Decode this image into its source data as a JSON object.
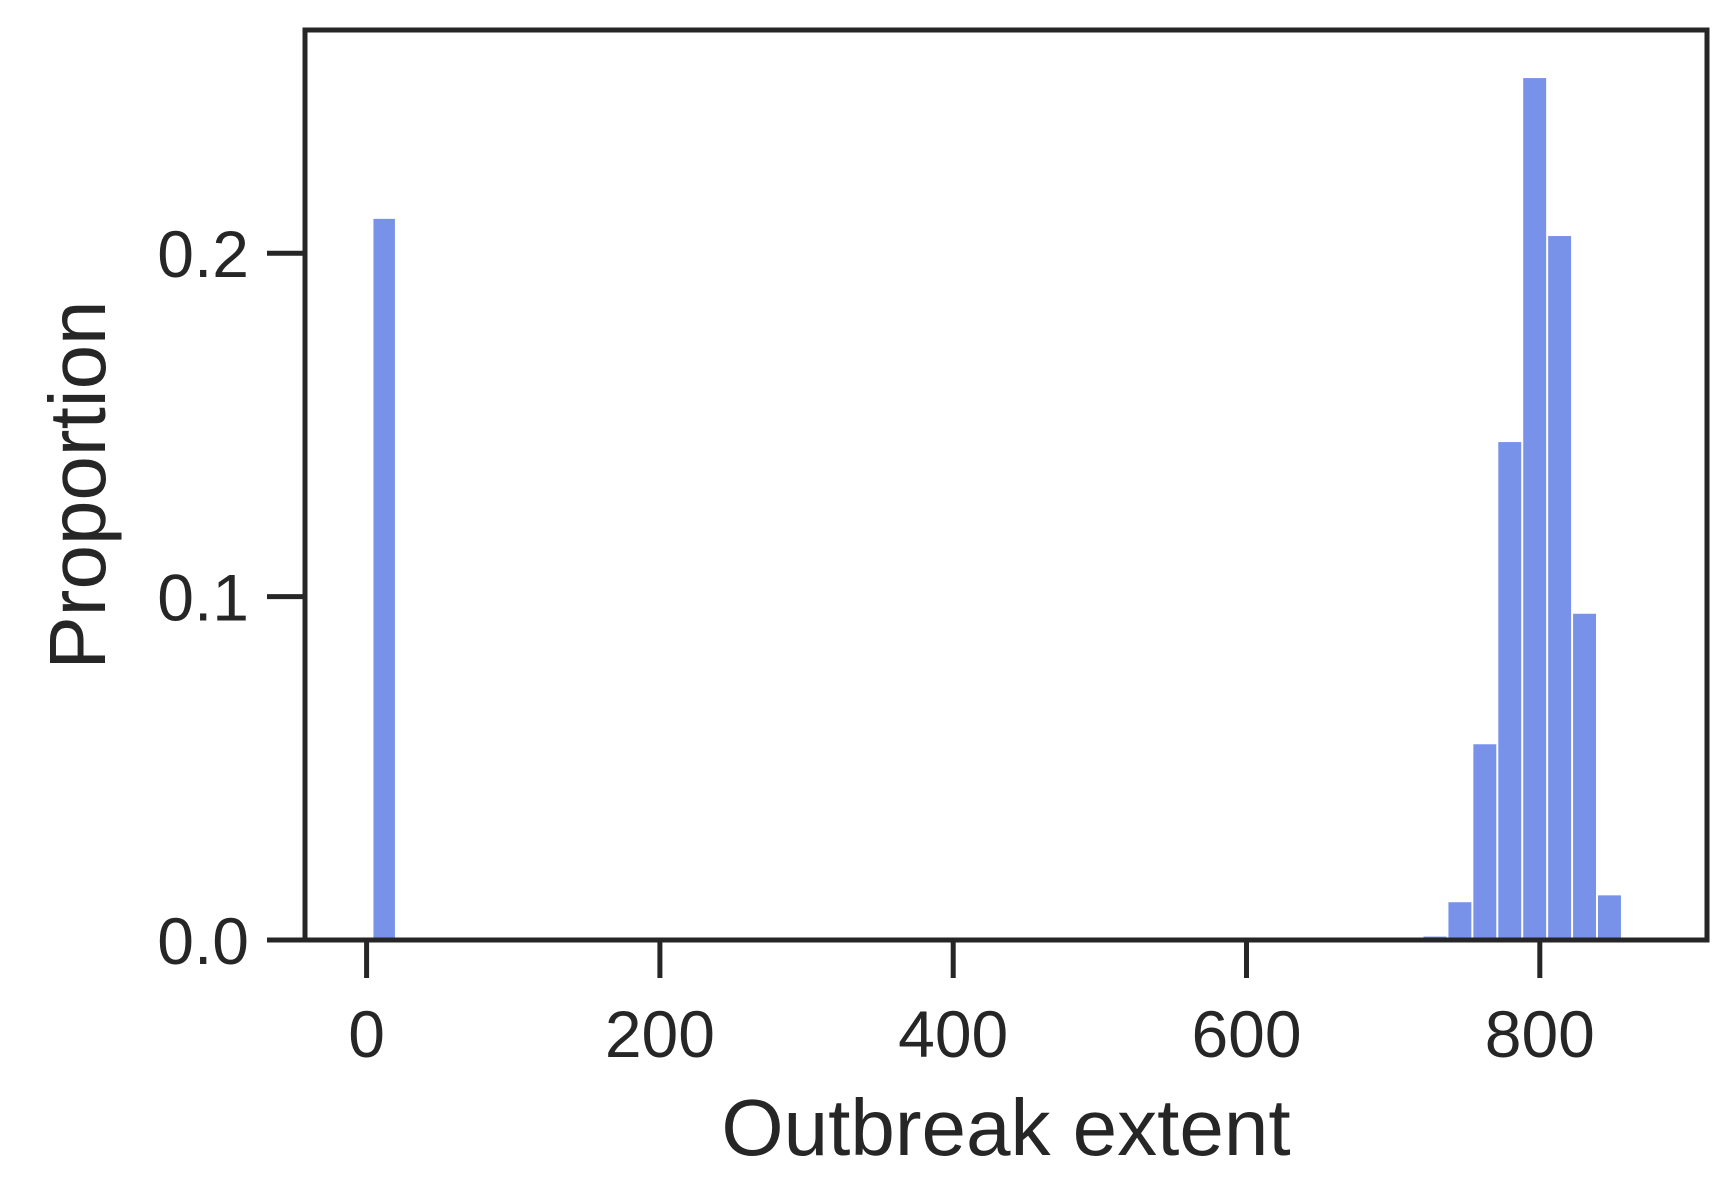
{
  "chart_data": {
    "type": "bar",
    "title": "",
    "xlabel": "Outbreak extent",
    "ylabel": "Proportion",
    "xlim": [
      -42,
      914
    ],
    "ylim": [
      0,
      0.265
    ],
    "bar_color": "#7892e9",
    "axis_color": "#262626",
    "grid": false,
    "x_ticks": [
      {
        "value": 0,
        "label": "0"
      },
      {
        "value": 200,
        "label": "200"
      },
      {
        "value": 400,
        "label": "400"
      },
      {
        "value": 600,
        "label": "600"
      },
      {
        "value": 800,
        "label": "800"
      }
    ],
    "y_ticks": [
      {
        "value": 0.0,
        "label": "0.0"
      },
      {
        "value": 0.1,
        "label": "0.1"
      },
      {
        "value": 0.2,
        "label": "0.2"
      }
    ],
    "bins": [
      {
        "x0": 4,
        "x1": 20,
        "value": 0.21
      },
      {
        "x0": 720,
        "x1": 737,
        "value": 0.001
      },
      {
        "x0": 737,
        "x1": 754,
        "value": 0.011
      },
      {
        "x0": 754,
        "x1": 771,
        "value": 0.057
      },
      {
        "x0": 771,
        "x1": 788,
        "value": 0.145
      },
      {
        "x0": 788,
        "x1": 805,
        "value": 0.251
      },
      {
        "x0": 805,
        "x1": 822,
        "value": 0.205
      },
      {
        "x0": 822,
        "x1": 839,
        "value": 0.095
      },
      {
        "x0": 839,
        "x1": 856,
        "value": 0.013
      }
    ]
  }
}
